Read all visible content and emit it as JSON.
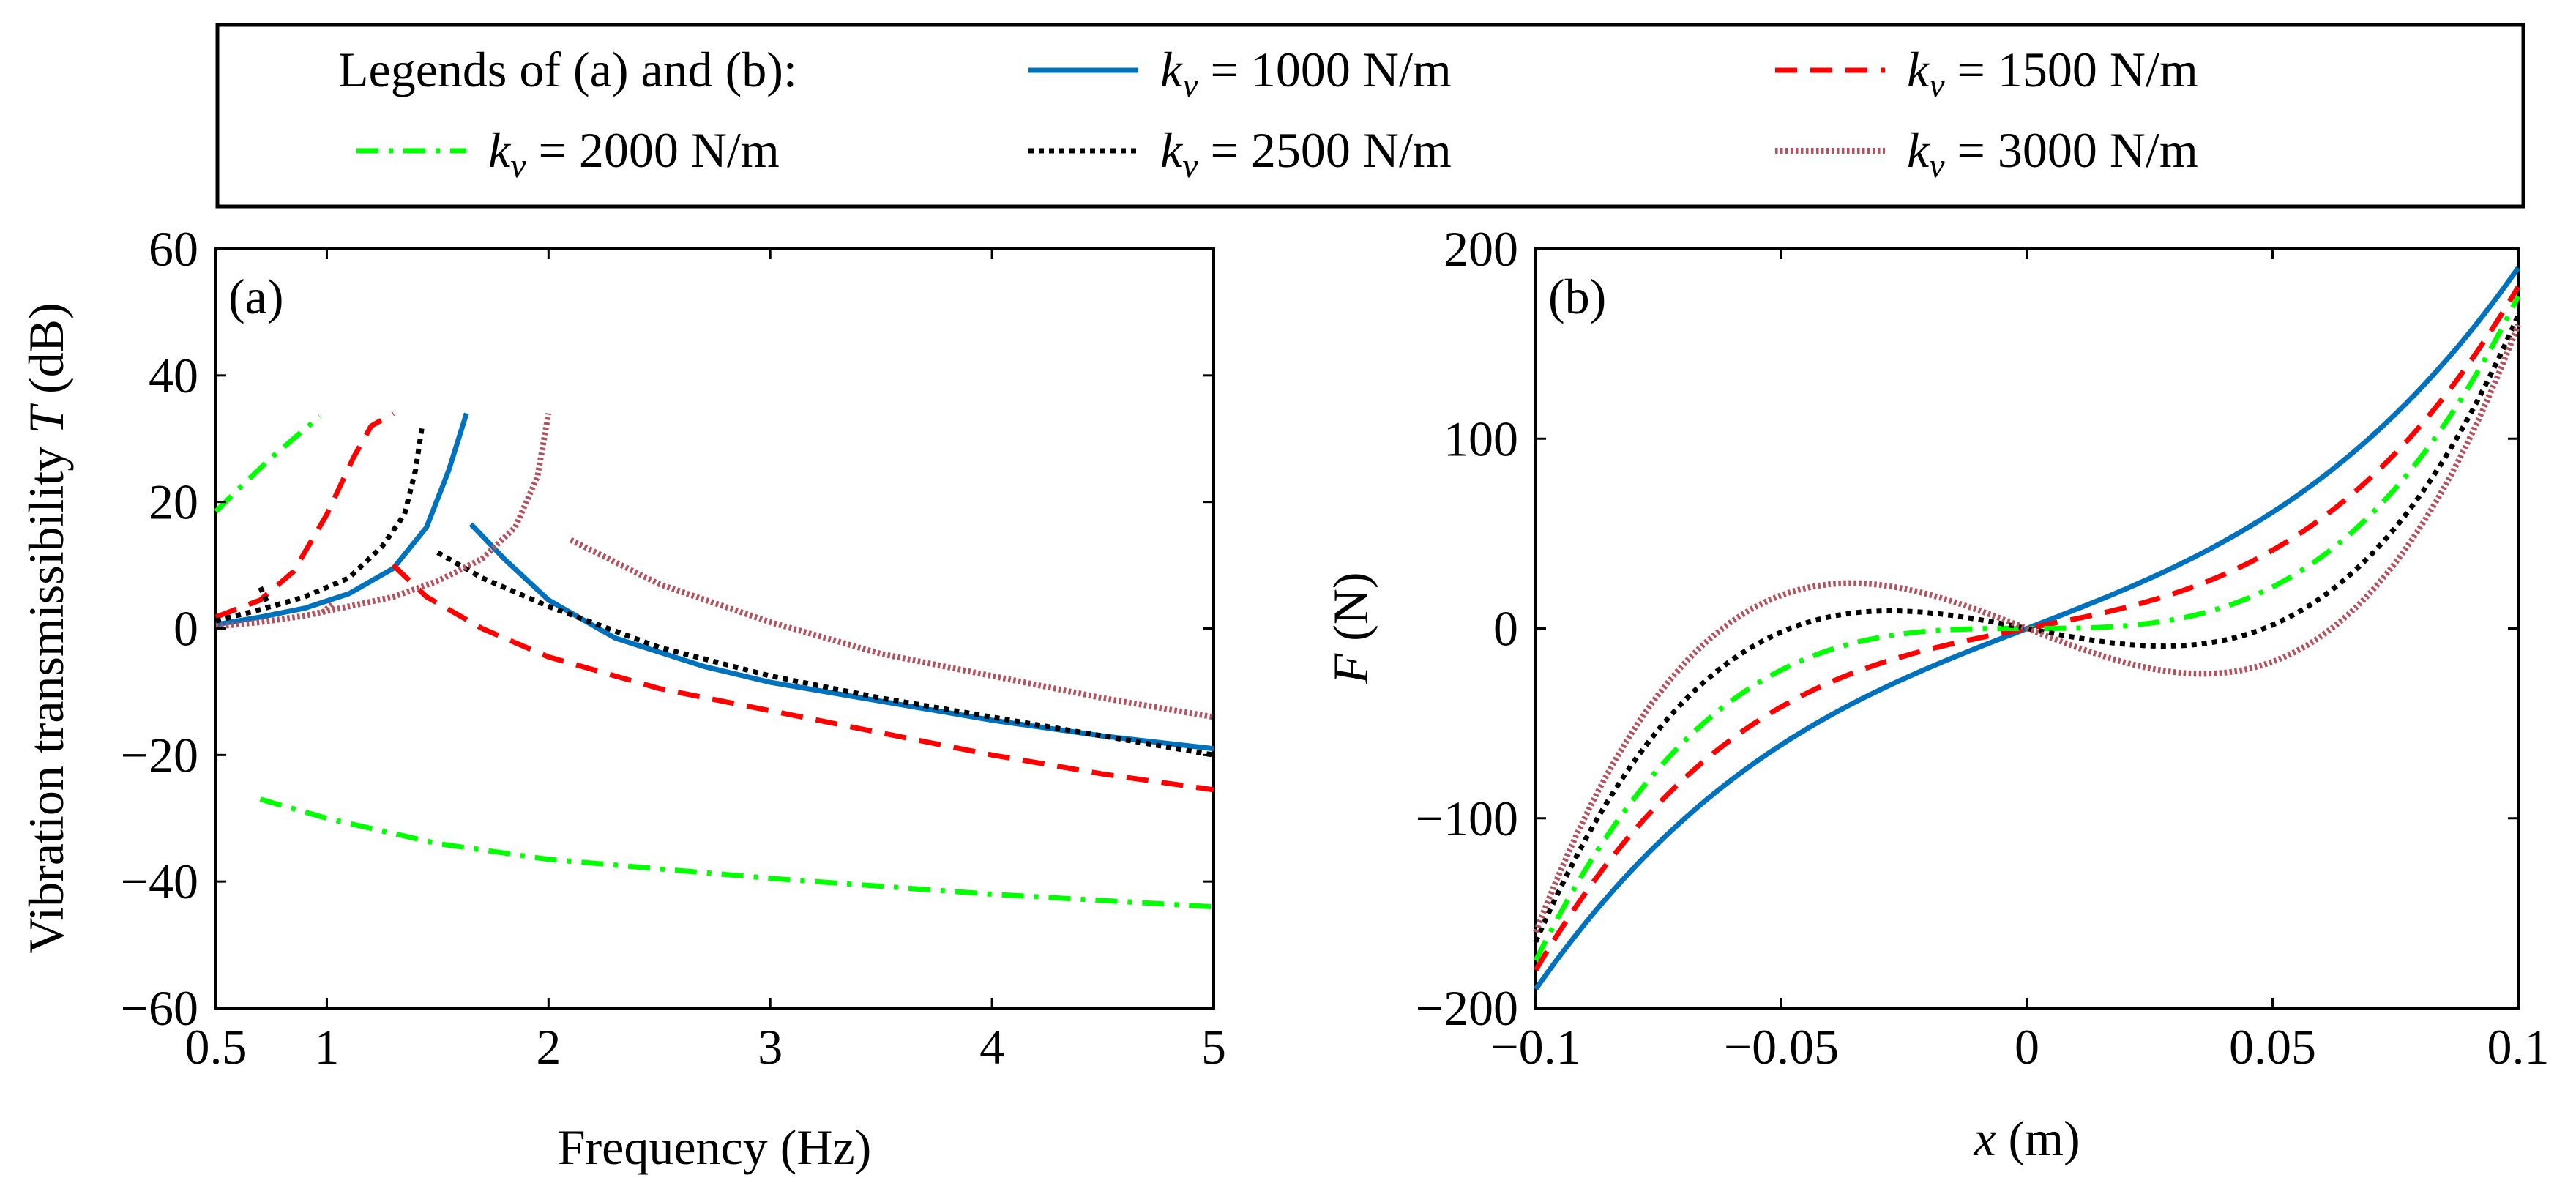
{
  "legend": {
    "heading": "Legends of (a) and (b):",
    "items": [
      {
        "sym": "k",
        "sub": "v",
        "rest": " = 1000 N/m",
        "color": "#0072BD",
        "style": "solid"
      },
      {
        "sym": "k",
        "sub": "v",
        "rest": " = 1500 N/m",
        "color": "#FF0000",
        "style": "dashed"
      },
      {
        "sym": "k",
        "sub": "v",
        "rest": " = 2000 N/m",
        "color": "#00FF00",
        "style": "dashdot"
      },
      {
        "sym": "k",
        "sub": "v",
        "rest": " = 2500 N/m",
        "color": "#000000",
        "style": "dotted"
      },
      {
        "sym": "k",
        "sub": "v",
        "rest": " = 3000 N/m",
        "color": "#B2525F",
        "style": "dense-dotted"
      }
    ]
  },
  "chart_data": [
    {
      "type": "line",
      "panel": "(a)",
      "xlabel": "Frequency (Hz)",
      "ylabel_prefix": "Vibration transmissibility ",
      "ylabel_symbol": "T",
      "ylabel_suffix": " (dB)",
      "xlim": [
        0.5,
        5
      ],
      "ylim": [
        -60,
        60
      ],
      "xticks": [
        0.5,
        1,
        2,
        3,
        4,
        5
      ],
      "xtick_labels": [
        "0.5",
        "1",
        "2",
        "3",
        "4",
        "5"
      ],
      "yticks": [
        -60,
        -40,
        -20,
        0,
        20,
        40,
        60
      ],
      "ytick_labels": [
        "−60",
        "−40",
        "−20",
        "0",
        "20",
        "40",
        "60"
      ],
      "series": [
        {
          "color": "#0072BD",
          "style": "solid",
          "segments": [
            [
              [
                0.5,
                0.6
              ],
              [
                0.7,
                1.8
              ],
              [
                0.9,
                3.2
              ],
              [
                1.1,
                5.5
              ],
              [
                1.3,
                9.5
              ],
              [
                1.45,
                16
              ],
              [
                1.55,
                25
              ],
              [
                1.63,
                34
              ]
            ],
            [
              [
                1.65,
                16.5
              ],
              [
                1.8,
                11
              ],
              [
                2.0,
                4.5
              ],
              [
                2.3,
                -1.5
              ],
              [
                2.7,
                -6
              ],
              [
                3.0,
                -8.5
              ],
              [
                3.5,
                -11.5
              ],
              [
                4.0,
                -14.5
              ],
              [
                4.5,
                -17
              ],
              [
                5.0,
                -19
              ]
            ]
          ]
        },
        {
          "color": "#FF0000",
          "style": "dashed",
          "segments": [
            [
              [
                0.5,
                1.8
              ],
              [
                0.7,
                4.5
              ],
              [
                0.85,
                9
              ],
              [
                1.0,
                18
              ],
              [
                1.12,
                27
              ],
              [
                1.2,
                32
              ],
              [
                1.3,
                34
              ]
            ],
            [
              [
                1.3,
                10
              ],
              [
                1.45,
                5
              ],
              [
                1.7,
                0
              ],
              [
                2.0,
                -4.5
              ],
              [
                2.5,
                -9.5
              ],
              [
                3.0,
                -13
              ],
              [
                3.5,
                -16.5
              ],
              [
                4.0,
                -20
              ],
              [
                4.5,
                -23
              ],
              [
                5.0,
                -25.5
              ]
            ]
          ]
        },
        {
          "color": "#00FF00",
          "style": "dashdot",
          "segments": [
            [
              [
                0.5,
                18.5
              ],
              [
                0.6,
                22
              ],
              [
                0.75,
                27
              ],
              [
                0.9,
                31.5
              ],
              [
                0.97,
                33.5
              ]
            ],
            [
              [
                0.7,
                -27
              ],
              [
                1.0,
                -30
              ],
              [
                1.5,
                -34
              ],
              [
                2.0,
                -36.5
              ],
              [
                3.0,
                -39.5
              ],
              [
                4.0,
                -42
              ],
              [
                5.0,
                -44
              ]
            ]
          ]
        },
        {
          "color": "#000000",
          "style": "dotted",
          "segments": [
            [
              [
                0.5,
                1.2
              ],
              [
                0.7,
                3
              ],
              [
                0.9,
                5
              ],
              [
                1.1,
                8
              ],
              [
                1.25,
                13
              ],
              [
                1.35,
                18
              ],
              [
                1.4,
                25
              ],
              [
                1.43,
                32
              ]
            ],
            [
              [
                0.7,
                6.5
              ],
              [
                0.74,
                3.5
              ]
            ],
            [
              [
                1.5,
                12
              ],
              [
                1.7,
                8
              ],
              [
                2.0,
                3.5
              ],
              [
                2.5,
                -3
              ],
              [
                3.0,
                -7.5
              ],
              [
                3.5,
                -11
              ],
              [
                4.0,
                -14
              ],
              [
                4.5,
                -17
              ],
              [
                5.0,
                -20
              ]
            ]
          ]
        },
        {
          "color": "#B2525F",
          "style": "dense-dotted",
          "segments": [
            [
              [
                0.5,
                0.3
              ],
              [
                0.7,
                1
              ],
              [
                0.9,
                2
              ],
              [
                1.1,
                3.5
              ],
              [
                1.3,
                5
              ],
              [
                1.5,
                7.5
              ],
              [
                1.7,
                11
              ],
              [
                1.85,
                16
              ],
              [
                1.95,
                24
              ],
              [
                2.0,
                34
              ]
            ],
            [
              [
                0.98,
                2.5
              ],
              [
                1.03,
                4
              ]
            ],
            [
              [
                2.1,
                14
              ],
              [
                2.5,
                7
              ],
              [
                3.0,
                1
              ],
              [
                3.5,
                -4
              ],
              [
                4.0,
                -7.5
              ],
              [
                4.5,
                -11
              ],
              [
                5.0,
                -14
              ]
            ]
          ]
        }
      ]
    },
    {
      "type": "line",
      "panel": "(b)",
      "xlabel_symbol": "x",
      "xlabel_suffix": " (m)",
      "ylabel_symbol": "F",
      "ylabel_suffix": " (N)",
      "xlim": [
        -0.1,
        0.1
      ],
      "ylim": [
        -200,
        200
      ],
      "xticks": [
        -0.1,
        -0.05,
        0,
        0.05,
        0.1
      ],
      "xtick_labels": [
        "−0.1",
        "−0.05",
        "0",
        "0.05",
        "0.1"
      ],
      "yticks": [
        -200,
        -100,
        0,
        100,
        200
      ],
      "ytick_labels": [
        "−200",
        "−100",
        "0",
        "100",
        "200"
      ],
      "cubic_series": [
        {
          "color": "#0072BD",
          "style": "solid",
          "a": 1000,
          "b": 90000
        },
        {
          "color": "#FF0000",
          "style": "dashed",
          "a": 500,
          "b": 130000
        },
        {
          "color": "#00FF00",
          "style": "dashdot",
          "a": 0,
          "b": 175000
        },
        {
          "color": "#000000",
          "style": "dotted",
          "a": -500,
          "b": 215000
        },
        {
          "color": "#B2525F",
          "style": "dense-dotted",
          "a": -1000,
          "b": 260000
        }
      ]
    }
  ]
}
